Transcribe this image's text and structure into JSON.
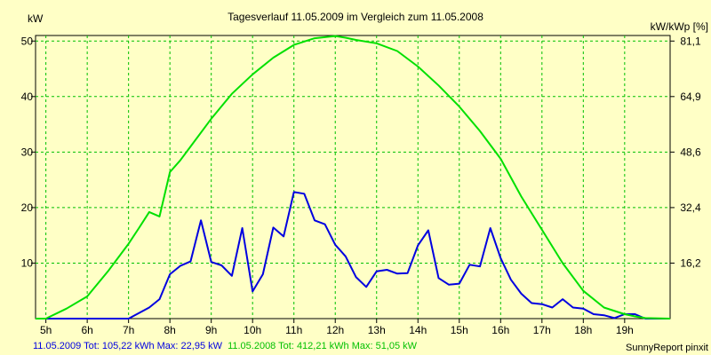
{
  "chart_data": {
    "type": "line",
    "title": "Tagesverlauf 11.05.2009 im Vergleich zum 11.05.2008",
    "ylabel_left": "kW",
    "ylabel_right": "kW/kWp [%]",
    "xlim": [
      4.75,
      20.1
    ],
    "ylim": [
      0,
      51
    ],
    "x_ticks": [
      {
        "x": 5,
        "label": "5h"
      },
      {
        "x": 6,
        "label": "6h"
      },
      {
        "x": 7,
        "label": "7h"
      },
      {
        "x": 8,
        "label": "8h"
      },
      {
        "x": 9,
        "label": "9h"
      },
      {
        "x": 10,
        "label": "10h"
      },
      {
        "x": 11,
        "label": "11h"
      },
      {
        "x": 12,
        "label": "12h"
      },
      {
        "x": 13,
        "label": "13h"
      },
      {
        "x": 14,
        "label": "14h"
      },
      {
        "x": 15,
        "label": "15h"
      },
      {
        "x": 16,
        "label": "16h"
      },
      {
        "x": 17,
        "label": "17h"
      },
      {
        "x": 18,
        "label": "18h"
      },
      {
        "x": 19,
        "label": "19h"
      }
    ],
    "y_ticks_left": [
      {
        "y": 10,
        "label": "10"
      },
      {
        "y": 20,
        "label": "20"
      },
      {
        "y": 30,
        "label": "30"
      },
      {
        "y": 40,
        "label": "40"
      },
      {
        "y": 50,
        "label": "50"
      }
    ],
    "y_ticks_right": [
      {
        "y": 10,
        "label": "16,2"
      },
      {
        "y": 20,
        "label": "32,4"
      },
      {
        "y": 30,
        "label": "48,6"
      },
      {
        "y": 40,
        "label": "64,9"
      },
      {
        "y": 50,
        "label": "81,1"
      }
    ],
    "grid": true,
    "series": [
      {
        "name": "11.05.2009",
        "color": "#0000e0",
        "x": [
          4.75,
          5.0,
          5.5,
          6.0,
          6.5,
          7.0,
          7.25,
          7.5,
          7.75,
          8.0,
          8.25,
          8.5,
          8.75,
          9.0,
          9.25,
          9.5,
          9.75,
          10.0,
          10.25,
          10.5,
          10.75,
          11.0,
          11.25,
          11.5,
          11.75,
          12.0,
          12.25,
          12.5,
          12.75,
          13.0,
          13.25,
          13.5,
          13.75,
          14.0,
          14.25,
          14.5,
          14.75,
          15.0,
          15.25,
          15.5,
          15.75,
          16.0,
          16.25,
          16.5,
          16.75,
          17.0,
          17.25,
          17.5,
          17.75,
          18.0,
          18.25,
          18.5,
          18.75,
          19.0,
          19.25,
          19.5,
          20.1
        ],
        "y": [
          0,
          0,
          0,
          0,
          0,
          0,
          1,
          2,
          3.5,
          8,
          9.5,
          10.3,
          17.7,
          10.2,
          9.6,
          7.7,
          16.3,
          4.9,
          8,
          16.4,
          14.8,
          22.8,
          22.5,
          17.7,
          17,
          13.3,
          11.2,
          7.5,
          5.7,
          8.5,
          8.8,
          8.1,
          8.2,
          13.2,
          15.9,
          7.3,
          6.1,
          6.3,
          9.7,
          9.4,
          16.3,
          10.9,
          7.0,
          4.5,
          2.8,
          2.6,
          2.0,
          3.5,
          2.0,
          1.8,
          0.8,
          0.6,
          0.1,
          0.8,
          0.8,
          0,
          0
        ]
      },
      {
        "name": "11.05.2008",
        "color": "#00e000",
        "x": [
          4.75,
          5.0,
          5.5,
          6.0,
          6.5,
          7.0,
          7.25,
          7.5,
          7.75,
          8.0,
          8.25,
          8.5,
          9.0,
          9.5,
          10.0,
          10.5,
          11.0,
          11.5,
          12.0,
          12.25,
          12.5,
          13.0,
          13.5,
          14.0,
          14.5,
          15.0,
          15.5,
          16.0,
          16.5,
          17.0,
          17.5,
          18.0,
          18.5,
          19.0,
          19.25,
          19.5,
          20.1
        ],
        "y": [
          0,
          0,
          1.8,
          4,
          8.5,
          13.5,
          16.3,
          19.2,
          18.4,
          26.4,
          28.5,
          31,
          36,
          40.5,
          44,
          47,
          49.3,
          50.5,
          50.9,
          50.6,
          50.2,
          49.6,
          48.2,
          45.4,
          42,
          38.2,
          33.8,
          28.8,
          22,
          16,
          10,
          5,
          2,
          0.8,
          0.4,
          0.1,
          0
        ]
      }
    ]
  },
  "footer": {
    "series1_text": "11.05.2009 Tot: 105,22 kWh Max: 22,95 kW",
    "series2_text": "11.05.2008 Tot: 412,21 kWh Max: 51,05 kW",
    "credit": "SunnyReport pinxit"
  }
}
